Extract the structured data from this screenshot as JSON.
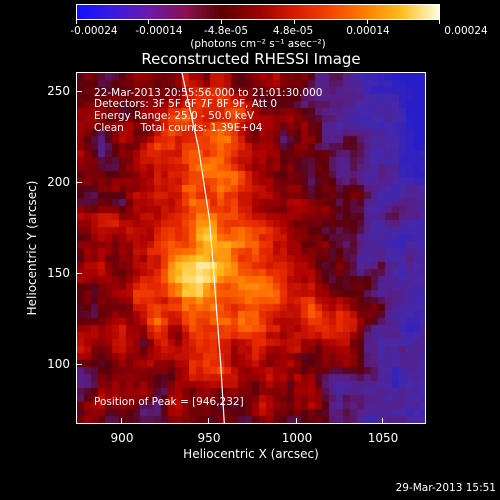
{
  "colorbar": {
    "ticks": [
      "-0.00024",
      "-0.00014",
      "-4.8e-05",
      "4.8e-05",
      "0.00014",
      "0.00024"
    ],
    "units": "(photons cm⁻² s⁻¹ asec⁻²)"
  },
  "title": "Reconstructed RHESSI Image",
  "annotations": {
    "time_range": "22-Mar-2013 20:55:56.000 to 21:01:30.000",
    "detectors": "Detectors: 3F 5F 6F 7F 8F 9F, Att 0",
    "energy": "Energy Range: 25.0 - 50.0 keV",
    "clean": "Clean     Total counts: 1.39E+04",
    "peak": "Position of Peak = [946,232]"
  },
  "timestamp": "29-Mar-2013 15:51",
  "chart_data": {
    "type": "heatmap",
    "title": "Reconstructed RHESSI Image",
    "xlabel": "Heliocentric X (arcsec)",
    "ylabel": "Heliocentric Y (arcsec)",
    "x_ticks": [
      "900",
      "950",
      "1000",
      "1050"
    ],
    "y_ticks": [
      "100",
      "150",
      "200",
      "250"
    ],
    "xlim": [
      878,
      1068
    ],
    "ylim": [
      66,
      262
    ],
    "colorbar_range": [
      -0.00024,
      0.00024
    ],
    "peak_position": [
      946,
      232
    ],
    "limb_curve": [
      [
        935,
        262
      ],
      [
        944,
        220
      ],
      [
        950,
        180
      ],
      [
        953,
        140
      ],
      [
        956,
        100
      ],
      [
        958,
        66
      ]
    ]
  }
}
